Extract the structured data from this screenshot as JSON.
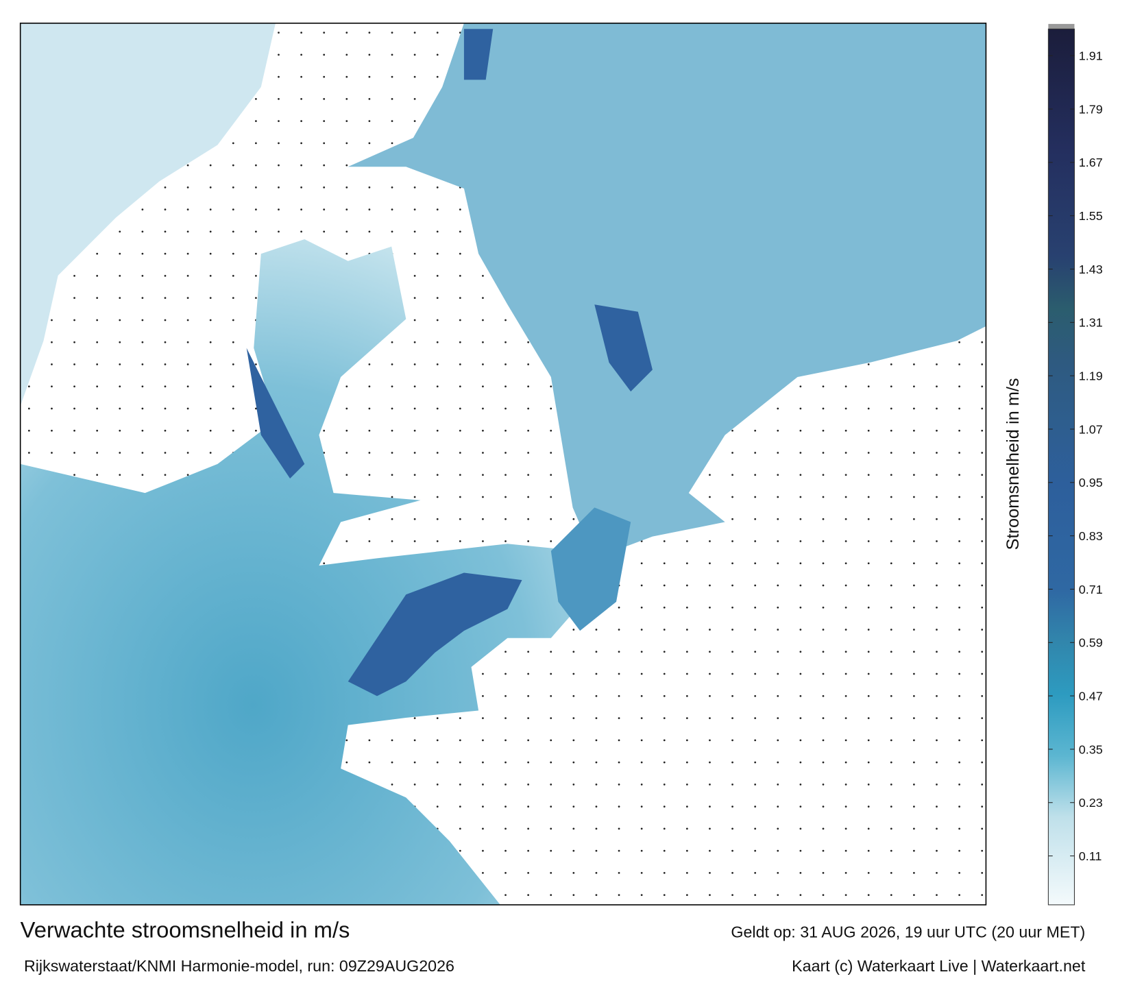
{
  "title": "Verwachte stroomsnelheid in m/s",
  "subtitle": "Rijkswaterstaat/KNMI Harmonie-model, run: 09Z29AUG2026",
  "valid_time": "Geldt op: 31 AUG 2026, 19 uur UTC (20 uur MET)",
  "credit": "Kaart (c) Waterkaart Live | Waterkaart.net",
  "colorbar": {
    "label": "Stroomsnelheid in m/s",
    "clim": [
      0,
      1.97
    ],
    "ticks": [
      0.11,
      0.23,
      0.35,
      0.47,
      0.59,
      0.71,
      0.83,
      0.95,
      1.07,
      1.19,
      1.31,
      1.43,
      1.55,
      1.67,
      1.79,
      1.91
    ]
  }
}
